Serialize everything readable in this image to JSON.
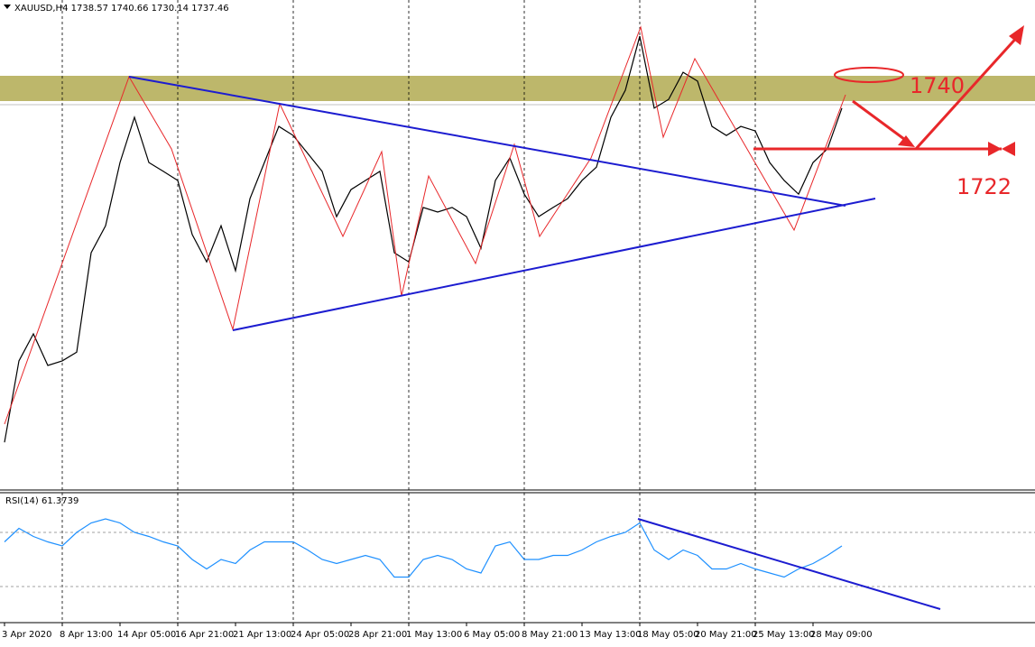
{
  "chart_data": [
    {
      "type": "line",
      "title": "XAUUSD,H4 1738.57 1740.66 1730.14 1737.46",
      "color": "#000000",
      "x": [
        0,
        4,
        8,
        12,
        16,
        20,
        24,
        28,
        32,
        36,
        40,
        44,
        48,
        52,
        56,
        60,
        64,
        68,
        72,
        76,
        80,
        84,
        88,
        92,
        96,
        100,
        104,
        108,
        112,
        116,
        120,
        124,
        128,
        132,
        136,
        140,
        144,
        148,
        152,
        156,
        160,
        164,
        168,
        172,
        176,
        180,
        184,
        188,
        192,
        196,
        200,
        204,
        208,
        212,
        216,
        220,
        224,
        228,
        232
      ],
      "values": [
        1638.4,
        1661.6,
        1669.3,
        1660.3,
        1661.6,
        1664.1,
        1692.4,
        1700.1,
        1718.1,
        1731.0,
        1718.1,
        1715.6,
        1713.0,
        1697.6,
        1689.8,
        1700.1,
        1687.3,
        1707.8,
        1718.1,
        1728.4,
        1725.8,
        1720.7,
        1715.6,
        1702.7,
        1710.4,
        1713.0,
        1715.6,
        1692.4,
        1689.8,
        1705.3,
        1704.0,
        1705.3,
        1702.7,
        1693.7,
        1713.0,
        1719.4,
        1709.1,
        1702.7,
        1705.3,
        1707.8,
        1713.0,
        1716.8,
        1731.0,
        1738.7,
        1754.1,
        1733.6,
        1736.1,
        1743.8,
        1741.3,
        1728.4,
        1725.8,
        1728.4,
        1727.1,
        1718.1,
        1713.0,
        1709.1,
        1718.1,
        1722.0,
        1733.6
      ],
      "xlim": [
        -1.25,
        285.5
      ],
      "ylim": [
        1625.6,
        1764.4
      ],
      "annotations": [
        "1740",
        "1722"
      ]
    },
    {
      "type": "line",
      "title": "RSI(14) 61.3739",
      "color": "#1e90ff",
      "x": [
        0,
        4,
        8,
        12,
        16,
        20,
        24,
        28,
        32,
        36,
        40,
        44,
        48,
        52,
        56,
        60,
        64,
        68,
        72,
        76,
        80,
        84,
        88,
        92,
        96,
        100,
        104,
        108,
        112,
        116,
        120,
        124,
        128,
        132,
        136,
        140,
        144,
        148,
        152,
        156,
        160,
        164,
        168,
        172,
        176,
        180,
        184,
        188,
        192,
        196,
        200,
        204,
        208,
        212,
        216,
        220,
        224,
        228,
        232
      ],
      "values": [
        63,
        73,
        67,
        63,
        60,
        70,
        77,
        80,
        77,
        70,
        67,
        63,
        60,
        50,
        43,
        50,
        47,
        57,
        63,
        63,
        63,
        57,
        50,
        47,
        50,
        53,
        50,
        37,
        37,
        50,
        53,
        50,
        43,
        40,
        60,
        63,
        50,
        50,
        53,
        53,
        57,
        63,
        67,
        70,
        77,
        57,
        50,
        57,
        53,
        43,
        43,
        47,
        43,
        40,
        37,
        43,
        47,
        53,
        60
      ],
      "xlim": [
        -1.25,
        285.5
      ],
      "ylim": [
        0,
        100
      ],
      "levels": [
        70,
        30
      ],
      "xticks": [
        {
          "value": 0,
          "label": "3 Apr 2020"
        },
        {
          "value": 16,
          "label": "8 Apr 13:00"
        },
        {
          "value": 32,
          "label": "14 Apr 05:00"
        },
        {
          "value": 48,
          "label": "16 Apr 21:00"
        },
        {
          "value": 64,
          "label": "21 Apr 13:00"
        },
        {
          "value": 80,
          "label": "24 Apr 05:00"
        },
        {
          "value": 96,
          "label": "28 Apr 21:00"
        },
        {
          "value": 112,
          "label": "1 May 13:00"
        },
        {
          "value": 128,
          "label": "6 May 05:00"
        },
        {
          "value": 144,
          "label": "8 May 21:00"
        },
        {
          "value": 160,
          "label": "13 May 13:00"
        },
        {
          "value": 176,
          "label": "18 May 05:00"
        },
        {
          "value": 192,
          "label": "20 May 21:00"
        },
        {
          "value": 208,
          "label": "25 May 13:00"
        },
        {
          "value": 224,
          "label": "28 May 09:00"
        }
      ]
    }
  ]
}
